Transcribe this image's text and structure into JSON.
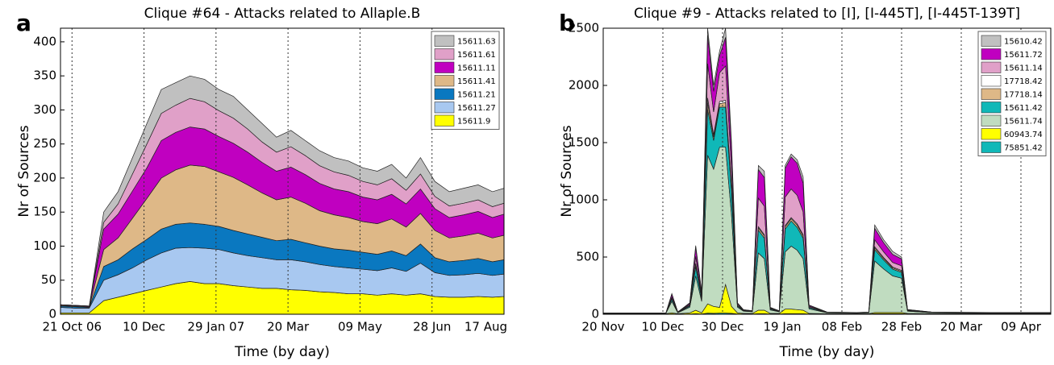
{
  "chart_data": [
    {
      "type": "area",
      "stacked": true,
      "panel_label": "a",
      "title": "Clique #64 - Attacks related to Allaple.B",
      "x_label": "Time (by day)",
      "y_label": "Nr of Sources",
      "x": [
        12,
        22,
        32,
        42,
        52,
        62,
        72,
        82,
        92,
        102,
        112,
        122,
        132,
        142,
        152,
        162,
        172,
        182,
        192,
        202,
        212,
        222,
        232,
        242,
        252,
        262,
        272,
        282,
        292,
        302,
        312,
        320
      ],
      "xlim": [
        12,
        320
      ],
      "xticks": [
        {
          "value": 20,
          "label": "21 Oct 06"
        },
        {
          "value": 70,
          "label": "10 Dec"
        },
        {
          "value": 120,
          "label": "29 Jan 07"
        },
        {
          "value": 170,
          "label": "20 Mar"
        },
        {
          "value": 220,
          "label": "09 May"
        },
        {
          "value": 270,
          "label": "28 Jun"
        },
        {
          "value": 320,
          "label": "17 Aug"
        }
      ],
      "ylim": [
        0,
        420
      ],
      "yticks": [
        0,
        50,
        100,
        150,
        200,
        250,
        300,
        350,
        400
      ],
      "grid": "x",
      "legend": "upper right",
      "series": [
        {
          "name": "15611.63",
          "color": "#c0c0c0",
          "values": [
            0,
            0,
            0,
            15,
            18,
            24,
            30,
            35,
            33,
            33,
            33,
            31,
            32,
            28,
            27,
            22,
            24,
            22,
            22,
            21,
            21,
            20,
            20,
            21,
            18,
            24,
            22,
            21,
            22,
            22,
            22,
            22
          ]
        },
        {
          "name": "15611.61",
          "color": "#e0a0c8",
          "values": [
            0,
            0,
            0,
            10,
            15,
            25,
            35,
            40,
            40,
            42,
            40,
            38,
            37,
            34,
            30,
            28,
            30,
            28,
            26,
            25,
            24,
            23,
            22,
            23,
            20,
            22,
            18,
            17,
            17,
            17,
            16,
            16
          ]
        },
        {
          "name": "15611.11",
          "color": "#c000c0",
          "values": [
            1,
            1,
            1,
            30,
            35,
            40,
            45,
            55,
            55,
            56,
            55,
            52,
            50,
            48,
            45,
            42,
            44,
            42,
            40,
            38,
            38,
            36,
            35,
            36,
            34,
            36,
            32,
            30,
            31,
            32,
            30,
            31
          ]
        },
        {
          "name": "15611.41",
          "color": "#deb887",
          "values": [
            1,
            1,
            1,
            25,
            32,
            45,
            60,
            75,
            80,
            85,
            85,
            80,
            78,
            72,
            65,
            60,
            62,
            58,
            52,
            50,
            48,
            45,
            45,
            47,
            42,
            45,
            40,
            35,
            36,
            37,
            35,
            36
          ]
        },
        {
          "name": "15611.21",
          "color": "#0a78c0",
          "values": [
            2,
            2,
            1,
            20,
            22,
            28,
            30,
            35,
            35,
            36,
            35,
            34,
            33,
            32,
            30,
            28,
            30,
            28,
            27,
            26,
            26,
            25,
            24,
            25,
            23,
            28,
            22,
            20,
            21,
            22,
            20,
            21
          ]
        },
        {
          "name": "15611.27",
          "color": "#a8c8f0",
          "values": [
            8,
            7,
            7,
            30,
            33,
            38,
            45,
            50,
            52,
            50,
            52,
            50,
            48,
            46,
            45,
            42,
            44,
            42,
            40,
            38,
            38,
            36,
            36,
            38,
            35,
            45,
            35,
            32,
            33,
            34,
            32,
            33
          ]
        },
        {
          "name": "15611.9",
          "color": "#ffff00",
          "values": [
            2,
            2,
            2,
            20,
            25,
            30,
            35,
            40,
            45,
            48,
            45,
            45,
            42,
            40,
            38,
            38,
            36,
            35,
            33,
            32,
            30,
            30,
            28,
            30,
            28,
            30,
            26,
            25,
            25,
            26,
            25,
            26
          ]
        }
      ]
    },
    {
      "type": "area",
      "stacked": true,
      "panel_label": "b",
      "title": "Clique #9 - Attacks related to [I], [I-445T], [I-445T-139T]",
      "x_label": "Time (by day)",
      "y_label": "Nr of Sources",
      "x": [
        0,
        15,
        21,
        23,
        25,
        29,
        31,
        33,
        35,
        37,
        39,
        41,
        43,
        45,
        47,
        50,
        52,
        54,
        56,
        59,
        61,
        63,
        65,
        67,
        69,
        75,
        85,
        89,
        91,
        94,
        97,
        100,
        102,
        110,
        130,
        150
      ],
      "xlim": [
        0,
        150
      ],
      "xticks": [
        {
          "value": 0,
          "label": "20 Nov"
        },
        {
          "value": 20,
          "label": "10 Dec"
        },
        {
          "value": 40,
          "label": "30 Dec"
        },
        {
          "value": 60,
          "label": "19 Jan"
        },
        {
          "value": 80,
          "label": "08 Feb"
        },
        {
          "value": 100,
          "label": "28 Feb"
        },
        {
          "value": 120,
          "label": "20 Mar"
        },
        {
          "value": 140,
          "label": "09 Apr"
        }
      ],
      "ylim": [
        0,
        2500
      ],
      "yticks": [
        0,
        500,
        1000,
        1500,
        2000,
        2500
      ],
      "grid": "x",
      "legend": "upper right",
      "series": [
        {
          "name": "15610.42",
          "color": "#c0c0c0",
          "values": [
            0,
            0,
            0,
            5,
            0,
            5,
            15,
            10,
            60,
            52,
            40,
            80,
            52,
            3,
            1,
            1,
            35,
            55,
            2,
            0,
            25,
            25,
            30,
            55,
            2,
            1,
            1,
            1,
            30,
            25,
            26,
            16,
            0,
            1,
            2,
            2
          ]
        },
        {
          "name": "15611.72",
          "color": "#c000c0",
          "values": [
            0,
            0,
            0,
            25,
            2,
            10,
            80,
            30,
            250,
            180,
            150,
            250,
            180,
            10,
            2,
            1,
            250,
            250,
            5,
            1,
            250,
            280,
            280,
            250,
            8,
            1,
            1,
            1,
            100,
            80,
            70,
            60,
            3,
            1,
            1,
            1
          ]
        },
        {
          "name": "15611.14",
          "color": "#e0a0c8",
          "values": [
            1,
            1,
            1,
            10,
            2,
            8,
            60,
            20,
            300,
            200,
            250,
            300,
            150,
            10,
            3,
            2,
            250,
            250,
            5,
            2,
            250,
            250,
            250,
            200,
            8,
            2,
            1,
            2,
            60,
            50,
            40,
            40,
            3,
            2,
            1,
            1
          ]
        },
        {
          "name": "17718.42",
          "color": "#ffffff",
          "values": [
            0,
            0,
            0,
            2,
            0,
            2,
            10,
            3,
            40,
            20,
            20,
            20,
            20,
            2,
            1,
            1,
            10,
            10,
            1,
            1,
            10,
            10,
            10,
            10,
            2,
            0,
            0,
            0,
            10,
            8,
            8,
            8,
            1,
            0,
            0,
            0
          ]
        },
        {
          "name": "17718.14",
          "color": "#deb887",
          "values": [
            0,
            0,
            0,
            5,
            1,
            3,
            20,
            5,
            60,
            30,
            30,
            40,
            30,
            3,
            1,
            1,
            20,
            20,
            2,
            1,
            20,
            20,
            20,
            20,
            3,
            1,
            0,
            1,
            15,
            12,
            10,
            10,
            2,
            1,
            0,
            0
          ]
        },
        {
          "name": "15611.42",
          "color": "#10b8b8",
          "values": [
            1,
            1,
            1,
            20,
            2,
            10,
            80,
            20,
            400,
            250,
            350,
            350,
            200,
            10,
            5,
            3,
            200,
            180,
            8,
            3,
            200,
            220,
            200,
            180,
            10,
            2,
            1,
            2,
            100,
            80,
            60,
            50,
            5,
            2,
            1,
            1
          ]
        },
        {
          "name": "15611.74",
          "color": "#c0dcc0",
          "values": [
            3,
            3,
            3,
            100,
            8,
            50,
            300,
            100,
            1300,
            1200,
            1400,
            1200,
            800,
            50,
            20,
            15,
            500,
            450,
            30,
            15,
            500,
            550,
            520,
            450,
            40,
            8,
            6,
            8,
            450,
            380,
            320,
            300,
            20,
            8,
            5,
            5
          ]
        },
        {
          "name": "60943.74",
          "color": "#ffff00",
          "values": [
            3,
            3,
            3,
            10,
            3,
            10,
            30,
            10,
            80,
            60,
            50,
            250,
            60,
            10,
            5,
            5,
            30,
            30,
            5,
            5,
            40,
            40,
            35,
            30,
            5,
            3,
            3,
            3,
            10,
            10,
            10,
            10,
            5,
            3,
            3,
            3
          ]
        },
        {
          "name": "75851.42",
          "color": "#10b8b8",
          "values": [
            2,
            2,
            2,
            3,
            2,
            2,
            5,
            2,
            10,
            8,
            10,
            10,
            8,
            2,
            2,
            2,
            5,
            5,
            2,
            2,
            5,
            5,
            5,
            5,
            2,
            2,
            2,
            2,
            5,
            5,
            5,
            5,
            2,
            2,
            2,
            2
          ]
        }
      ]
    }
  ]
}
